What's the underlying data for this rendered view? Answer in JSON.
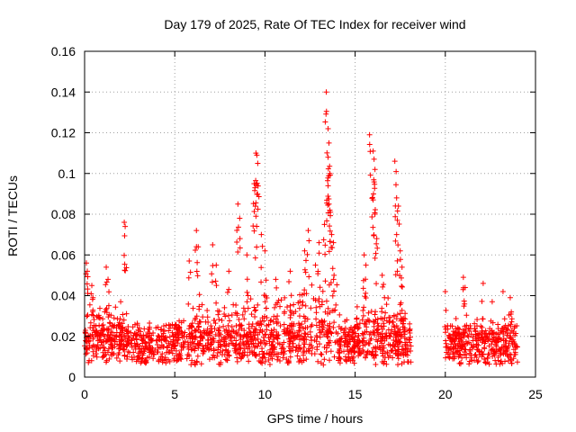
{
  "chart_data": {
    "type": "scatter",
    "title": "Day 179 of 2025, Rate Of TEC Index for receiver wind",
    "xlabel": "GPS time / hours",
    "ylabel": "ROTI / TECUs",
    "xlim": [
      0,
      25
    ],
    "ylim": [
      0,
      0.16
    ],
    "xticks": [
      "0",
      "5",
      "10",
      "15",
      "20",
      "25"
    ],
    "yticks": [
      "0",
      "0.02",
      "0.04",
      "0.06",
      "0.08",
      "0.1",
      "0.12",
      "0.14",
      "0.16"
    ],
    "grid": true,
    "marker": "+",
    "color": "#ff0000",
    "segments": [
      {
        "start": 0.0,
        "end": 18.1,
        "base": 0.014
      },
      {
        "start": 20.0,
        "end": 24.0,
        "base": 0.014
      }
    ],
    "highlights": [
      {
        "x": 0.1,
        "y": 0.056
      },
      {
        "x": 0.15,
        "y": 0.052
      },
      {
        "x": 0.4,
        "y": 0.045
      },
      {
        "x": 1.2,
        "y": 0.054
      },
      {
        "x": 1.3,
        "y": 0.048
      },
      {
        "x": 2.0,
        "y": 0.037
      },
      {
        "x": 2.2,
        "y": 0.076
      },
      {
        "x": 2.25,
        "y": 0.074
      },
      {
        "x": 5.8,
        "y": 0.057
      },
      {
        "x": 6.2,
        "y": 0.072
      },
      {
        "x": 6.3,
        "y": 0.064
      },
      {
        "x": 7.1,
        "y": 0.065
      },
      {
        "x": 7.3,
        "y": 0.055
      },
      {
        "x": 8.0,
        "y": 0.052
      },
      {
        "x": 8.5,
        "y": 0.085
      },
      {
        "x": 8.6,
        "y": 0.078
      },
      {
        "x": 9.0,
        "y": 0.06
      },
      {
        "x": 9.4,
        "y": 0.095
      },
      {
        "x": 9.45,
        "y": 0.093
      },
      {
        "x": 9.5,
        "y": 0.11
      },
      {
        "x": 9.55,
        "y": 0.109
      },
      {
        "x": 9.6,
        "y": 0.105
      },
      {
        "x": 9.5,
        "y": 0.079
      },
      {
        "x": 9.8,
        "y": 0.07
      },
      {
        "x": 10.0,
        "y": 0.062
      },
      {
        "x": 10.6,
        "y": 0.048
      },
      {
        "x": 11.4,
        "y": 0.052
      },
      {
        "x": 12.2,
        "y": 0.062
      },
      {
        "x": 12.4,
        "y": 0.072
      },
      {
        "x": 12.8,
        "y": 0.055
      },
      {
        "x": 13.0,
        "y": 0.066
      },
      {
        "x": 13.3,
        "y": 0.075
      },
      {
        "x": 13.4,
        "y": 0.14
      },
      {
        "x": 13.5,
        "y": 0.122
      },
      {
        "x": 13.55,
        "y": 0.115
      },
      {
        "x": 13.5,
        "y": 0.108
      },
      {
        "x": 13.6,
        "y": 0.1
      },
      {
        "x": 13.5,
        "y": 0.094
      },
      {
        "x": 13.55,
        "y": 0.085
      },
      {
        "x": 13.6,
        "y": 0.082
      },
      {
        "x": 13.7,
        "y": 0.07
      },
      {
        "x": 13.8,
        "y": 0.066
      },
      {
        "x": 15.5,
        "y": 0.06
      },
      {
        "x": 15.6,
        "y": 0.055
      },
      {
        "x": 15.8,
        "y": 0.119
      },
      {
        "x": 16.0,
        "y": 0.111
      },
      {
        "x": 16.05,
        "y": 0.107
      },
      {
        "x": 16.1,
        "y": 0.102
      },
      {
        "x": 16.0,
        "y": 0.087
      },
      {
        "x": 16.1,
        "y": 0.08
      },
      {
        "x": 16.2,
        "y": 0.068
      },
      {
        "x": 16.5,
        "y": 0.05
      },
      {
        "x": 17.2,
        "y": 0.106
      },
      {
        "x": 17.3,
        "y": 0.088
      },
      {
        "x": 17.4,
        "y": 0.084
      },
      {
        "x": 17.3,
        "y": 0.07
      },
      {
        "x": 17.5,
        "y": 0.062
      },
      {
        "x": 17.6,
        "y": 0.054
      },
      {
        "x": 20.0,
        "y": 0.042
      },
      {
        "x": 21.0,
        "y": 0.049
      },
      {
        "x": 21.1,
        "y": 0.044
      },
      {
        "x": 22.1,
        "y": 0.046
      },
      {
        "x": 22.6,
        "y": 0.037
      },
      {
        "x": 23.2,
        "y": 0.042
      },
      {
        "x": 23.6,
        "y": 0.039
      }
    ]
  }
}
